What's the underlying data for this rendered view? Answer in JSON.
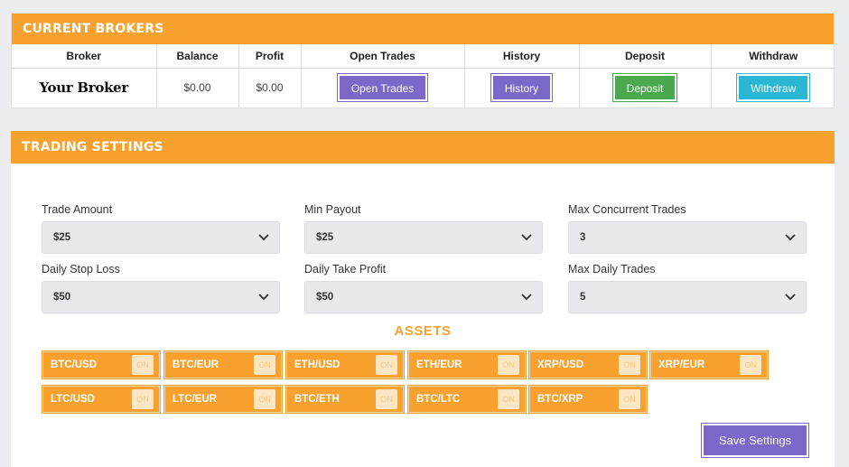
{
  "brokers": {
    "header": "CURRENT BROKERS",
    "columns": [
      "Broker",
      "Balance",
      "Profit",
      "Open Trades",
      "History",
      "Deposit",
      "Withdraw"
    ],
    "row": {
      "broker": "Your Broker",
      "balance": "$0.00",
      "profit": "$0.00",
      "open_trades_label": "Open Trades",
      "history_label": "History",
      "deposit_label": "Deposit",
      "withdraw_label": "Withdraw"
    }
  },
  "settings": {
    "header": "TRADING SETTINGS",
    "fields": [
      {
        "label": "Trade Amount",
        "value": "$25"
      },
      {
        "label": "Min Payout",
        "value": "$25"
      },
      {
        "label": "Max Concurrent Trades",
        "value": "3"
      },
      {
        "label": "Daily Stop Loss",
        "value": "$50"
      },
      {
        "label": "Daily Take Profit",
        "value": "$50"
      },
      {
        "label": "Max Daily Trades",
        "value": "5"
      }
    ],
    "assets_title": "ASSETS",
    "assets": [
      {
        "name": "BTC/USD",
        "state": "ON"
      },
      {
        "name": "BTC/EUR",
        "state": "ON"
      },
      {
        "name": "ETH/USD",
        "state": "ON"
      },
      {
        "name": "ETH/EUR",
        "state": "ON"
      },
      {
        "name": "XRP/USD",
        "state": "ON"
      },
      {
        "name": "XRP/EUR",
        "state": "ON"
      },
      {
        "name": "LTC/USD",
        "state": "ON"
      },
      {
        "name": "LTC/EUR",
        "state": "ON"
      },
      {
        "name": "BTC/ETH",
        "state": "ON"
      },
      {
        "name": "BTC/LTC",
        "state": "ON"
      },
      {
        "name": "BTC/XRP",
        "state": "ON"
      }
    ],
    "save_label": "Save Settings"
  },
  "colors": {
    "accent": "#f9a12f",
    "purple": "#7b68c8",
    "green": "#4aa84e",
    "cyan": "#2ab7d4"
  }
}
